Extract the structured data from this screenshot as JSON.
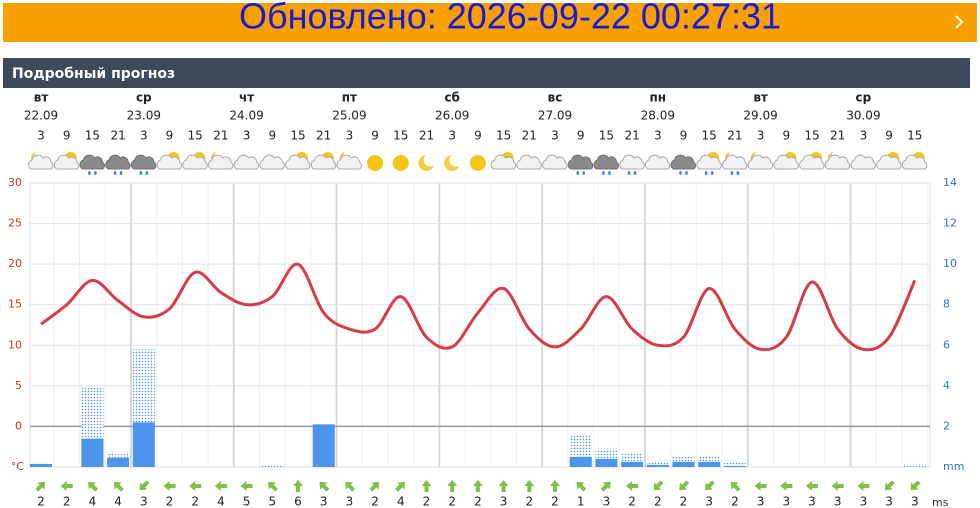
{
  "banner": {
    "text": "Обновлено: 2026-09-22 00:27:31"
  },
  "header": {
    "title": "Подробный прогноз"
  },
  "chart_data": {
    "type": "combo",
    "days": [
      {
        "name": "вт",
        "date": "22.09"
      },
      {
        "name": "ср",
        "date": "23.09"
      },
      {
        "name": "чт",
        "date": "24.09"
      },
      {
        "name": "пт",
        "date": "25.09"
      },
      {
        "name": "сб",
        "date": "26.09"
      },
      {
        "name": "вс",
        "date": "27.09"
      },
      {
        "name": "пн",
        "date": "28.09"
      },
      {
        "name": "вт",
        "date": "29.09"
      },
      {
        "name": "ср",
        "date": "30.09"
      }
    ],
    "categories": [
      3,
      9,
      15,
      21,
      3,
      9,
      15,
      21,
      3,
      9,
      15,
      21,
      3,
      9,
      15,
      21,
      3,
      9,
      15,
      21,
      3,
      9,
      15,
      21,
      3,
      9,
      15,
      21,
      3,
      9,
      15,
      21,
      3,
      9,
      15
    ],
    "series": [
      {
        "type": "line",
        "color": "#d63b47",
        "axis": "y",
        "values": [
          12.6,
          15,
          18,
          15.5,
          13.5,
          14.5,
          19,
          16.5,
          15,
          16,
          20,
          14,
          12,
          12,
          16,
          11,
          9.8,
          14,
          17,
          12,
          9.8,
          12,
          16,
          12,
          10,
          11,
          17,
          12,
          9.5,
          11,
          17.8,
          12,
          9.5,
          11,
          18
        ]
      },
      {
        "type": "bar-dotted",
        "color": "#4d94ec",
        "axis": "y2",
        "values": [
          0.15,
          0,
          4.0,
          0.65,
          5.8,
          0,
          0,
          0,
          0,
          0.1,
          0,
          2.1,
          0,
          0,
          0,
          0,
          0,
          0,
          0,
          0,
          0,
          1.6,
          0.9,
          0.7,
          0.25,
          0.5,
          0.55,
          0.2,
          0,
          0,
          0,
          0,
          0,
          0,
          0.15
        ]
      },
      {
        "type": "bar",
        "color": "#4d94ec",
        "axis": "y2",
        "values": [
          0.15,
          0,
          1.4,
          0.45,
          2.2,
          0,
          0,
          0,
          0,
          0,
          0,
          2.1,
          0,
          0,
          0,
          0,
          0,
          0,
          0,
          0,
          0,
          0.5,
          0.4,
          0.25,
          0.1,
          0.25,
          0.25,
          0.05,
          0,
          0,
          0,
          0,
          0,
          0,
          0
        ]
      }
    ],
    "ylim": [
      -5,
      30
    ],
    "yticks": [
      0,
      5,
      10,
      15,
      20,
      25,
      30
    ],
    "y_unit": "°C",
    "y_color": "#c0392b",
    "y2lim": [
      0,
      14
    ],
    "y2ticks": [
      2,
      4,
      6,
      8,
      10,
      12,
      14
    ],
    "y2_unit": "mm",
    "y2_color": "#2b78c2",
    "grid": true,
    "wind": {
      "speed": [
        2,
        2,
        4,
        4,
        3,
        2,
        2,
        4,
        5,
        5,
        6,
        3,
        3,
        2,
        4,
        2,
        2,
        2,
        3,
        2,
        2,
        1,
        3,
        2,
        2,
        2,
        3,
        2,
        3,
        3,
        3,
        3,
        3,
        3,
        3
      ],
      "direction": [
        45,
        270,
        315,
        315,
        225,
        270,
        270,
        270,
        270,
        315,
        0,
        315,
        315,
        45,
        45,
        0,
        0,
        0,
        0,
        0,
        0,
        315,
        45,
        270,
        225,
        225,
        225,
        315,
        270,
        270,
        270,
        270,
        270,
        225,
        225
      ],
      "unit": "ms",
      "color": "#7dc242"
    }
  }
}
